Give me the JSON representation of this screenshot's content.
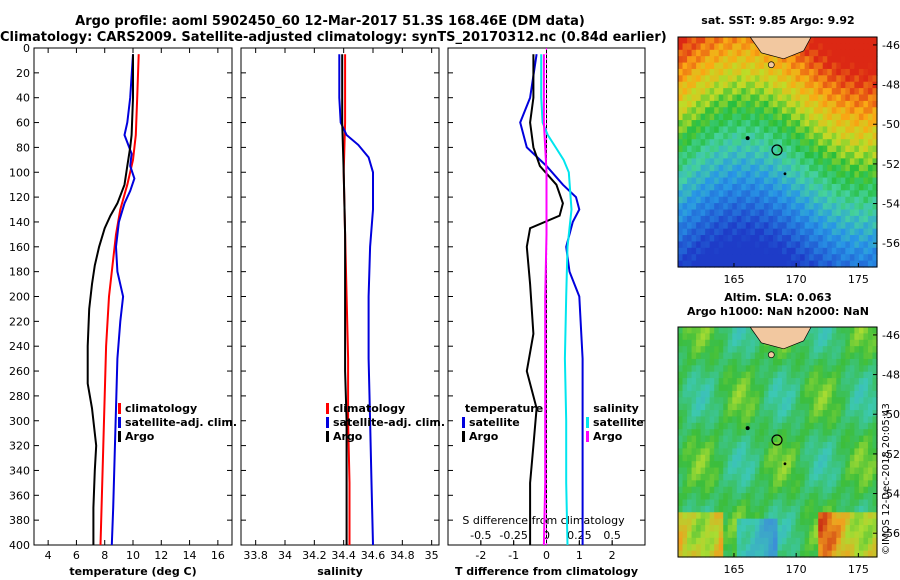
{
  "header": {
    "line1": "Argo profile: aoml 5902450_60 12-Mar-2017 51.3S 168.46E (DM data)",
    "line2": "Climatology: CARS2009. Satellite-adjusted climatology: synTS_20170312.nc (0.84d earlier)"
  },
  "colors": {
    "climatology": "#ff0000",
    "satellite": "#0000dd",
    "argo": "#000000",
    "sat_salinity": "#00e5ee",
    "clim_salinity": "#ff00ff"
  },
  "chart_data": [
    {
      "type": "line",
      "id": "temperature",
      "xlabel": "temperature (deg C)",
      "ylabel": "",
      "xlim": [
        3,
        17
      ],
      "ylim": [
        0,
        400
      ],
      "xticks": [
        "4",
        "6",
        "8",
        "10",
        "12",
        "14",
        "16"
      ],
      "yticks": [
        "0",
        "20",
        "40",
        "60",
        "80",
        "100",
        "120",
        "140",
        "160",
        "180",
        "200",
        "220",
        "240",
        "260",
        "280",
        "300",
        "320",
        "340",
        "360",
        "380",
        "400"
      ],
      "legend": [
        "climatology",
        "satellite-adj. clim.",
        "Argo"
      ],
      "series": [
        {
          "name": "climatology",
          "color": "#ff0000",
          "points": [
            [
              10.4,
              5
            ],
            [
              10.3,
              40
            ],
            [
              10.2,
              70
            ],
            [
              10.0,
              90
            ],
            [
              9.6,
              110
            ],
            [
              9.1,
              130
            ],
            [
              8.8,
              150
            ],
            [
              8.6,
              170
            ],
            [
              8.3,
              200
            ],
            [
              8.1,
              240
            ],
            [
              8.0,
              280
            ],
            [
              7.9,
              320
            ],
            [
              7.8,
              360
            ],
            [
              7.7,
              400
            ]
          ]
        },
        {
          "name": "satellite-adj. clim.",
          "color": "#0000dd",
          "points": [
            [
              10.0,
              5
            ],
            [
              9.8,
              40
            ],
            [
              9.6,
              60
            ],
            [
              9.4,
              70
            ],
            [
              9.9,
              85
            ],
            [
              9.8,
              95
            ],
            [
              10.1,
              105
            ],
            [
              9.8,
              115
            ],
            [
              9.4,
              125
            ],
            [
              9.0,
              140
            ],
            [
              8.8,
              160
            ],
            [
              8.9,
              180
            ],
            [
              9.3,
              200
            ],
            [
              9.1,
              220
            ],
            [
              8.9,
              250
            ],
            [
              8.8,
              290
            ],
            [
              8.7,
              330
            ],
            [
              8.6,
              370
            ],
            [
              8.5,
              400
            ]
          ]
        },
        {
          "name": "Argo",
          "color": "#000000",
          "points": [
            [
              10.0,
              5
            ],
            [
              10.0,
              40
            ],
            [
              9.9,
              70
            ],
            [
              9.8,
              80
            ],
            [
              9.6,
              95
            ],
            [
              9.4,
              110
            ],
            [
              8.9,
              125
            ],
            [
              8.4,
              135
            ],
            [
              8.0,
              145
            ],
            [
              7.6,
              160
            ],
            [
              7.3,
              175
            ],
            [
              7.1,
              190
            ],
            [
              6.9,
              210
            ],
            [
              6.8,
              240
            ],
            [
              6.8,
              270
            ],
            [
              7.1,
              290
            ],
            [
              7.4,
              320
            ],
            [
              7.3,
              340
            ],
            [
              7.2,
              370
            ],
            [
              7.2,
              400
            ]
          ]
        }
      ]
    },
    {
      "type": "line",
      "id": "salinity",
      "xlabel": "salinity",
      "ylabel": "",
      "xlim": [
        33.7,
        35.05
      ],
      "ylim": [
        0,
        400
      ],
      "xticks": [
        "33.8",
        "34",
        "34.2",
        "34.4",
        "34.6",
        "34.8",
        "35"
      ],
      "legend": [
        "climatology",
        "satellite-adj. clim.",
        "Argo"
      ],
      "series": [
        {
          "name": "climatology",
          "color": "#ff0000",
          "points": [
            [
              34.41,
              5
            ],
            [
              34.41,
              60
            ],
            [
              34.4,
              100
            ],
            [
              34.41,
              150
            ],
            [
              34.42,
              200
            ],
            [
              34.43,
              250
            ],
            [
              34.43,
              300
            ],
            [
              34.44,
              350
            ],
            [
              34.44,
              400
            ]
          ]
        },
        {
          "name": "satellite-adj. clim.",
          "color": "#0000dd",
          "points": [
            [
              34.37,
              5
            ],
            [
              34.37,
              40
            ],
            [
              34.38,
              60
            ],
            [
              34.42,
              70
            ],
            [
              34.5,
              78
            ],
            [
              34.57,
              88
            ],
            [
              34.6,
              100
            ],
            [
              34.6,
              130
            ],
            [
              34.58,
              160
            ],
            [
              34.57,
              200
            ],
            [
              34.57,
              250
            ],
            [
              34.58,
              300
            ],
            [
              34.59,
              350
            ],
            [
              34.6,
              400
            ]
          ]
        },
        {
          "name": "Argo",
          "color": "#000000",
          "points": [
            [
              34.39,
              5
            ],
            [
              34.39,
              60
            ],
            [
              34.4,
              100
            ],
            [
              34.41,
              150
            ],
            [
              34.41,
              200
            ],
            [
              34.41,
              260
            ],
            [
              34.42,
              300
            ],
            [
              34.42,
              350
            ],
            [
              34.42,
              400
            ]
          ]
        }
      ]
    },
    {
      "type": "line",
      "id": "difference",
      "xlabel": "T difference from climatology",
      "xlim": [
        -3,
        3
      ],
      "ylim": [
        0,
        400
      ],
      "xticks": [
        "-2",
        "-1",
        "0",
        "1",
        "2"
      ],
      "secondary_xlabel": "S difference from climatology",
      "secondary_xticks": [
        "-0.5",
        "-0.25",
        "0",
        "0.25",
        "0.5"
      ],
      "secondary_xlim": [
        -0.75,
        0.75
      ],
      "legend_temperature_title": "temperature",
      "legend_salinity_title": "salinity",
      "legend_temperature": [
        "satellite",
        "Argo"
      ],
      "legend_salinity": [
        "satellite",
        "Argo"
      ],
      "series": [
        {
          "name": "T satellite",
          "color": "#0000dd",
          "points": [
            [
              -0.3,
              5
            ],
            [
              -0.5,
              40
            ],
            [
              -0.8,
              60
            ],
            [
              -0.6,
              80
            ],
            [
              0.0,
              95
            ],
            [
              0.5,
              110
            ],
            [
              0.9,
              120
            ],
            [
              1.0,
              130
            ],
            [
              0.8,
              140
            ],
            [
              0.6,
              160
            ],
            [
              0.7,
              180
            ],
            [
              1.0,
              200
            ],
            [
              1.1,
              250
            ],
            [
              1.1,
              300
            ],
            [
              1.1,
              350
            ],
            [
              1.1,
              400
            ]
          ]
        },
        {
          "name": "T Argo",
          "color": "#000000",
          "points": [
            [
              -0.4,
              5
            ],
            [
              -0.4,
              40
            ],
            [
              -0.5,
              60
            ],
            [
              -0.4,
              80
            ],
            [
              -0.2,
              95
            ],
            [
              0.3,
              110
            ],
            [
              0.5,
              125
            ],
            [
              0.4,
              135
            ],
            [
              -0.5,
              145
            ],
            [
              -0.6,
              160
            ],
            [
              -0.5,
              190
            ],
            [
              -0.4,
              230
            ],
            [
              -0.6,
              260
            ],
            [
              -0.3,
              290
            ],
            [
              -0.4,
              320
            ],
            [
              -0.5,
              350
            ],
            [
              -0.5,
              400
            ]
          ]
        },
        {
          "name": "S satellite",
          "color": "#00e5ee",
          "points": [
            [
              -0.04,
              5
            ],
            [
              -0.04,
              40
            ],
            [
              -0.03,
              60
            ],
            [
              0.01,
              70
            ],
            [
              0.07,
              80
            ],
            [
              0.13,
              90
            ],
            [
              0.17,
              100
            ],
            [
              0.19,
              130
            ],
            [
              0.16,
              160
            ],
            [
              0.15,
              200
            ],
            [
              0.14,
              250
            ],
            [
              0.15,
              300
            ],
            [
              0.15,
              350
            ],
            [
              0.16,
              400
            ]
          ]
        },
        {
          "name": "S Argo",
          "color": "#ff00ff",
          "points": [
            [
              -0.02,
              5
            ],
            [
              -0.02,
              60
            ],
            [
              -0.01,
              80
            ],
            [
              0.0,
              100
            ],
            [
              0.0,
              150
            ],
            [
              -0.01,
              200
            ],
            [
              -0.01,
              250
            ],
            [
              -0.01,
              300
            ],
            [
              -0.01,
              350
            ],
            [
              -0.02,
              400
            ]
          ]
        }
      ]
    },
    {
      "type": "heatmap",
      "id": "sst-map",
      "title": "sat. SST: 9.85 Argo: 9.92",
      "xlim": [
        160.5,
        176.5
      ],
      "ylim": [
        -57.2,
        -45.6
      ],
      "xticks": [
        "165",
        "170",
        "175"
      ],
      "yticks": [
        "-46",
        "-48",
        "-50",
        "-52",
        "-54",
        "-56"
      ],
      "argo_position": [
        168.46,
        -51.3
      ]
    },
    {
      "type": "heatmap",
      "id": "sla-map",
      "title_line1": "Altim. SLA: 0.063",
      "title_line2": "Argo h1000: NaN h2000: NaN",
      "xlim": [
        160.5,
        176.5
      ],
      "ylim": [
        -57.2,
        -45.6
      ],
      "xticks": [
        "165",
        "170",
        "175"
      ],
      "yticks": [
        "-46",
        "-48",
        "-50",
        "-52",
        "-54",
        "-56"
      ],
      "argo_position": [
        168.46,
        -51.3
      ]
    }
  ],
  "credit": "©IMOS 12-Dec-2018 20:05:43"
}
